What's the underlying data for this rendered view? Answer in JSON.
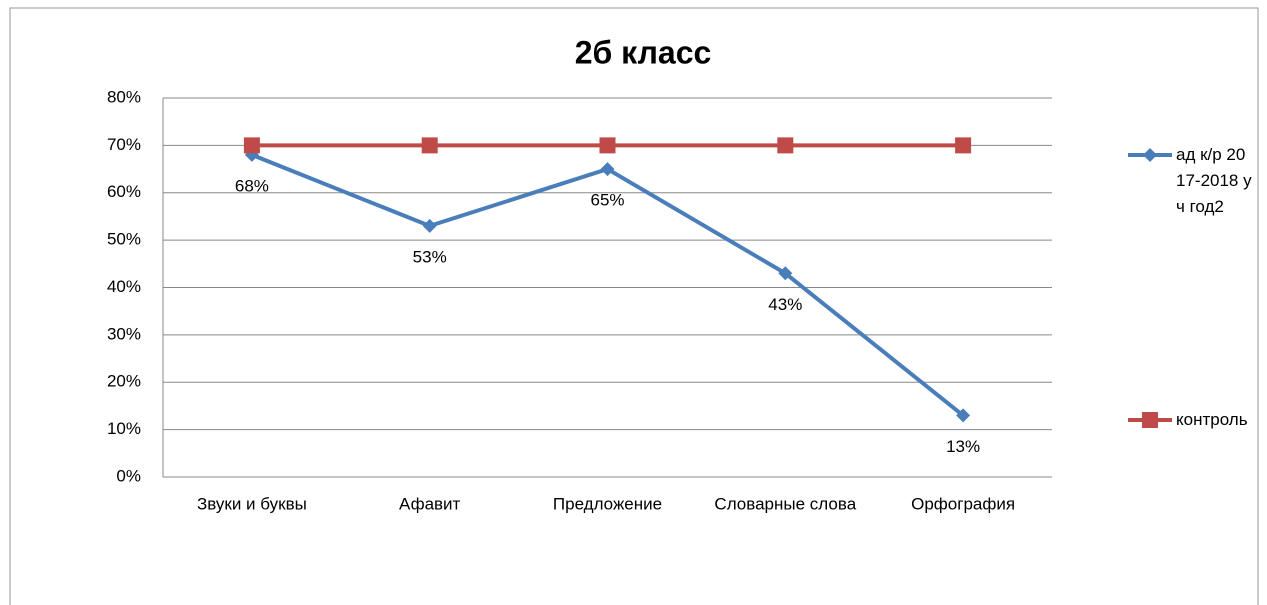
{
  "chart_data": {
    "type": "line",
    "title": "2б класс",
    "categories": [
      "Звуки и буквы",
      "Афавит",
      "Предложение",
      "Словарные слова",
      "Орфография"
    ],
    "series": [
      {
        "name": "ад к/р 2017-2018 уч год2",
        "color": "#4a7ebb",
        "marker": "diamond",
        "values": [
          68,
          53,
          65,
          43,
          13
        ],
        "value_labels": [
          "68%",
          "53%",
          "65%",
          "43%",
          "13%"
        ]
      },
      {
        "name": "контроль",
        "color": "#be4b48",
        "marker": "square",
        "values": [
          70,
          70,
          70,
          70,
          70
        ]
      }
    ],
    "ylim": [
      0,
      80
    ],
    "yticks": [
      {
        "value": 0,
        "label": "0%"
      },
      {
        "value": 10,
        "label": "10%"
      },
      {
        "value": 20,
        "label": "20%"
      },
      {
        "value": 30,
        "label": "30%"
      },
      {
        "value": 40,
        "label": "40%"
      },
      {
        "value": 50,
        "label": "50%"
      },
      {
        "value": 60,
        "label": "60%"
      },
      {
        "value": 70,
        "label": "70%"
      },
      {
        "value": 80,
        "label": "80%"
      }
    ],
    "grid": true,
    "legend": "right"
  }
}
